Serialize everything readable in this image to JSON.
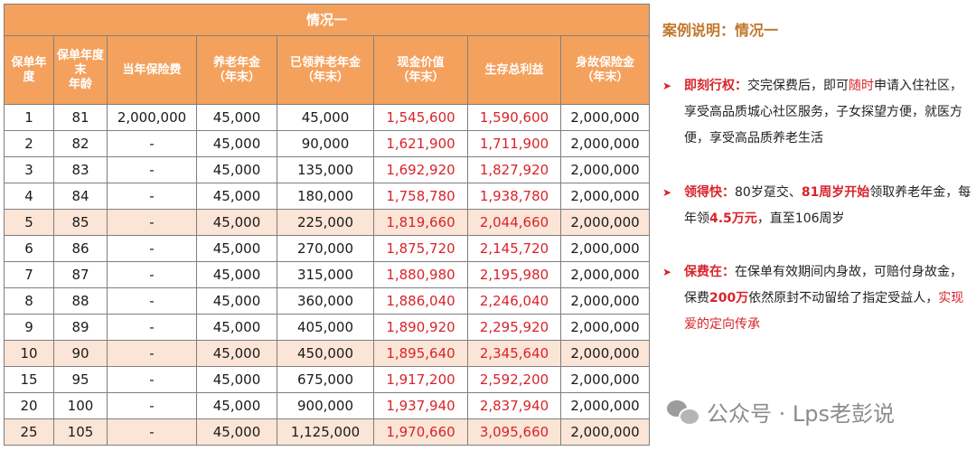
{
  "table": {
    "title": "情况一",
    "headers": [
      {
        "lines": [
          "保单年",
          "度"
        ]
      },
      {
        "lines": [
          "保单年度",
          "末",
          "年龄"
        ]
      },
      {
        "lines": [
          "当年保险费"
        ]
      },
      {
        "lines": [
          "养老年金",
          "（年末）"
        ]
      },
      {
        "lines": [
          "已领养老年金",
          "（年末）"
        ]
      },
      {
        "lines": [
          "现金价值",
          "（年末）"
        ]
      },
      {
        "lines": [
          "生存总利益"
        ]
      },
      {
        "lines": [
          "身故保险金",
          "（年末）"
        ]
      }
    ],
    "rows": [
      {
        "hl": false,
        "cells": [
          "1",
          "81",
          "2,000,000",
          "45,000",
          "45,000",
          "1,545,600",
          "1,590,600",
          "2,000,000"
        ]
      },
      {
        "hl": false,
        "cells": [
          "2",
          "82",
          "-",
          "45,000",
          "90,000",
          "1,621,900",
          "1,711,900",
          "2,000,000"
        ]
      },
      {
        "hl": false,
        "cells": [
          "3",
          "83",
          "-",
          "45,000",
          "135,000",
          "1,692,920",
          "1,827,920",
          "2,000,000"
        ]
      },
      {
        "hl": false,
        "cells": [
          "4",
          "84",
          "-",
          "45,000",
          "180,000",
          "1,758,780",
          "1,938,780",
          "2,000,000"
        ]
      },
      {
        "hl": true,
        "cells": [
          "5",
          "85",
          "-",
          "45,000",
          "225,000",
          "1,819,660",
          "2,044,660",
          "2,000,000"
        ]
      },
      {
        "hl": false,
        "cells": [
          "6",
          "86",
          "-",
          "45,000",
          "270,000",
          "1,875,720",
          "2,145,720",
          "2,000,000"
        ]
      },
      {
        "hl": false,
        "cells": [
          "7",
          "87",
          "-",
          "45,000",
          "315,000",
          "1,880,980",
          "2,195,980",
          "2,000,000"
        ]
      },
      {
        "hl": false,
        "cells": [
          "8",
          "88",
          "-",
          "45,000",
          "360,000",
          "1,886,040",
          "2,246,040",
          "2,000,000"
        ]
      },
      {
        "hl": false,
        "cells": [
          "9",
          "89",
          "-",
          "45,000",
          "405,000",
          "1,890,920",
          "2,295,920",
          "2,000,000"
        ]
      },
      {
        "hl": true,
        "cells": [
          "10",
          "90",
          "-",
          "45,000",
          "450,000",
          "1,895,640",
          "2,345,640",
          "2,000,000"
        ]
      },
      {
        "hl": false,
        "cells": [
          "15",
          "95",
          "-",
          "45,000",
          "675,000",
          "1,917,200",
          "2,592,200",
          "2,000,000"
        ]
      },
      {
        "hl": false,
        "cells": [
          "20",
          "100",
          "-",
          "45,000",
          "900,000",
          "1,937,940",
          "2,837,940",
          "2,000,000"
        ]
      },
      {
        "hl": true,
        "cells": [
          "25",
          "105",
          "-",
          "45,000",
          "1,125,000",
          "1,970,660",
          "3,095,660",
          "2,000,000"
        ]
      }
    ],
    "red_columns": [
      5,
      6
    ]
  },
  "case": {
    "title": "案例说明：情况一",
    "points": [
      {
        "segments": [
          {
            "t": "即刻行权：",
            "s": "kw"
          },
          {
            "t": "交完保费后，即可",
            "s": ""
          },
          {
            "t": "随时",
            "s": "rd"
          },
          {
            "t": "申请入住社区，享受高品质城心社区服务，子女探望方便，就医方便，享受高品质养老生活",
            "s": ""
          }
        ]
      },
      {
        "segments": [
          {
            "t": "领得快：",
            "s": "kw"
          },
          {
            "t": "80岁趸交、",
            "s": ""
          },
          {
            "t": "81周岁开始",
            "s": "kw"
          },
          {
            "t": "领取养老年金，每年领",
            "s": ""
          },
          {
            "t": "4.5万元",
            "s": "kw"
          },
          {
            "t": "，直至106周岁",
            "s": ""
          }
        ]
      },
      {
        "segments": [
          {
            "t": "保费在：",
            "s": "kw"
          },
          {
            "t": "在保单有效期间内身故，可赔付身故金，保费",
            "s": ""
          },
          {
            "t": "200万",
            "s": "kw"
          },
          {
            "t": "依然原封不动留给了指定受益人，",
            "s": ""
          },
          {
            "t": "实现爱的定向传承",
            "s": "rd"
          }
        ]
      }
    ]
  },
  "watermark": {
    "text": "公众号 · Lps老彭说",
    "icon": "wechat-icon"
  },
  "colors": {
    "header_bg": "#f4a15d",
    "highlight_row": "#fbe5d6",
    "accent_red": "#d9232a",
    "case_title": "#c0772a"
  }
}
